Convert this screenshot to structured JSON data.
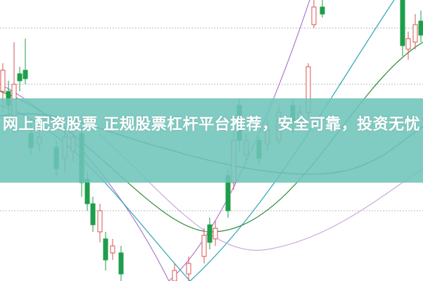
{
  "article": {
    "title": "网上配资股票 正规股票杠杆平台推荐，安全可靠，投资无忧"
  },
  "colors": {
    "band": "#6ec4ba",
    "candle_up": "#d9534f",
    "candle_down": "#1e9e4a",
    "ma_purple": "#b07ad0",
    "ma_teal": "#2aa6b0",
    "ma_green": "#2e8b3c",
    "ma_blue": "#2c5f7a"
  }
}
